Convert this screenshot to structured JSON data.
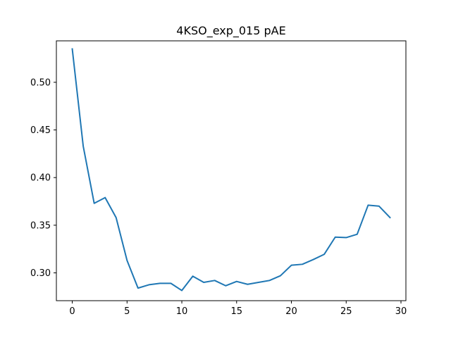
{
  "chart_data": {
    "type": "line",
    "title": "4KSO_exp_015 pAE",
    "xlabel": "",
    "ylabel": "",
    "xlim": [
      -1.45,
      30.45
    ],
    "ylim": [
      0.2708,
      0.5435
    ],
    "x_ticks": [
      0,
      5,
      10,
      15,
      20,
      25,
      30
    ],
    "x_tick_labels": [
      "0",
      "5",
      "10",
      "15",
      "20",
      "25",
      "30"
    ],
    "y_ticks": [
      0.3,
      0.35,
      0.4,
      0.45,
      0.5
    ],
    "y_tick_labels": [
      "0.30",
      "0.35",
      "0.40",
      "0.45",
      "0.50"
    ],
    "grid": false,
    "series": [
      {
        "color": "#1f77b4",
        "x": [
          0,
          1,
          2,
          3,
          4,
          5,
          6,
          7,
          8,
          9,
          10,
          11,
          12,
          13,
          14,
          15,
          16,
          17,
          18,
          19,
          20,
          21,
          22,
          23,
          24,
          25,
          26,
          27,
          28,
          29
        ],
        "values": [
          0.535,
          0.433,
          0.373,
          0.379,
          0.358,
          0.313,
          0.284,
          0.2875,
          0.289,
          0.289,
          0.2815,
          0.2965,
          0.29,
          0.292,
          0.2865,
          0.291,
          0.288,
          0.29,
          0.292,
          0.297,
          0.308,
          0.309,
          0.314,
          0.3195,
          0.3375,
          0.337,
          0.3405,
          0.371,
          0.37,
          0.358
        ]
      }
    ]
  }
}
